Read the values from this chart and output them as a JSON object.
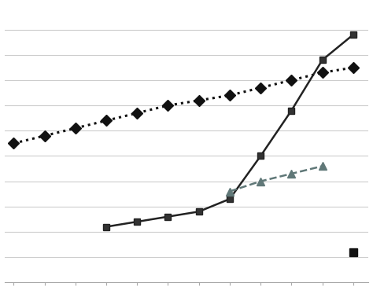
{
  "dotted_line": {
    "x": [
      0,
      1,
      2,
      3,
      4,
      5,
      6,
      7,
      8,
      9,
      10,
      11
    ],
    "y": [
      55,
      58,
      61,
      64,
      67,
      70,
      72,
      74,
      77,
      80,
      83,
      85
    ],
    "color": "#111111",
    "linestyle": "dotted",
    "linewidth": 2.2,
    "marker": "D",
    "markersize": 7,
    "markerfacecolor": "#111111"
  },
  "solid_line": {
    "x": [
      3,
      4,
      5,
      6,
      7,
      8,
      9,
      10,
      11
    ],
    "y": [
      22,
      24,
      26,
      28,
      33,
      50,
      68,
      88,
      98
    ],
    "color": "#222222",
    "linestyle": "solid",
    "linewidth": 1.8,
    "marker": "s",
    "markersize": 6,
    "markerfacecolor": "#333333"
  },
  "dashed_line": {
    "x": [
      7,
      8,
      9,
      10
    ],
    "y": [
      36,
      40,
      43,
      46
    ],
    "color": "#607878",
    "linestyle": "dashed",
    "linewidth": 1.8,
    "marker": "^",
    "markersize": 7,
    "markerfacecolor": "#607878"
  },
  "isolated_point": {
    "x": [
      11
    ],
    "y": [
      12
    ],
    "color": "#111111",
    "marker": "s",
    "markersize": 7,
    "markerfacecolor": "#111111"
  },
  "ylim": [
    0,
    110
  ],
  "xlim": [
    -0.3,
    11.5
  ],
  "y_grid_lines": [
    10,
    20,
    30,
    40,
    50,
    60,
    70,
    80,
    90,
    100
  ],
  "background_color": "#ffffff",
  "grid_color": "#cccccc",
  "figsize": [
    4.74,
    3.69
  ],
  "dpi": 100
}
